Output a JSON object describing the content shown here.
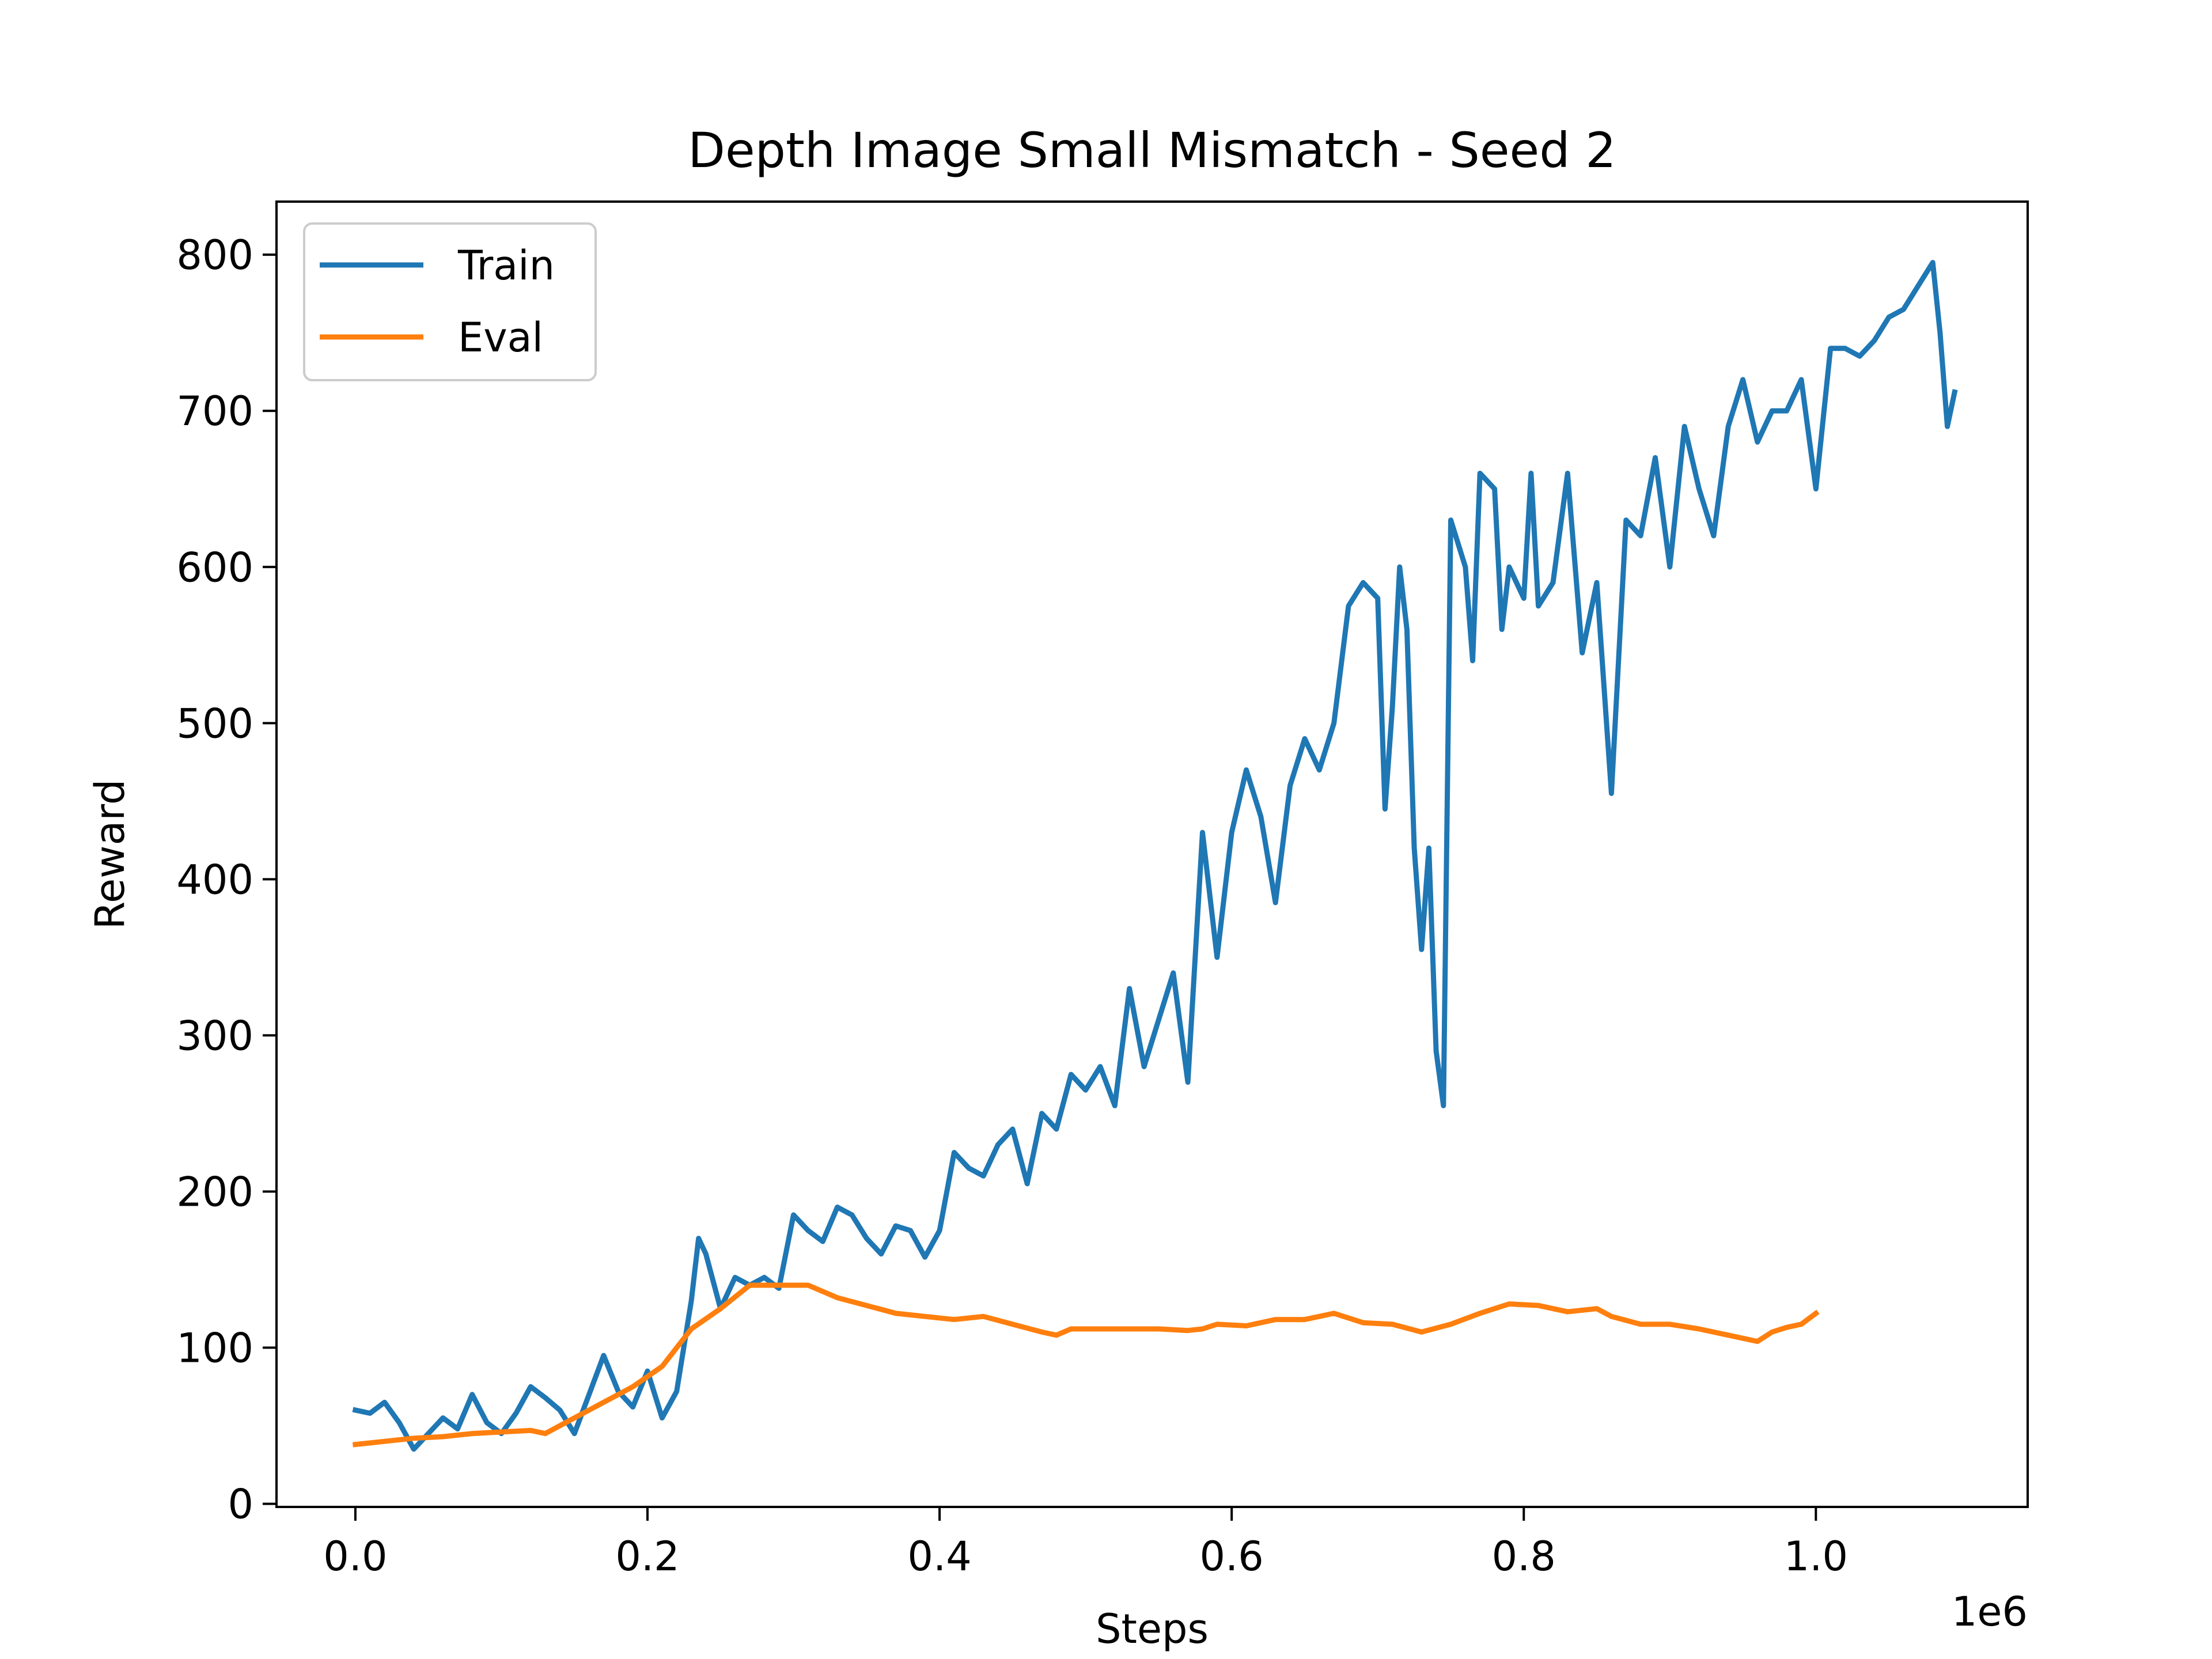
{
  "chart_data": {
    "type": "line",
    "title": "Depth Image Small Mismatch - Seed 2",
    "xlabel": "Steps",
    "ylabel": "Reward",
    "x_multiplier_label": "1e6",
    "xlim": [
      -0.054,
      1.145
    ],
    "ylim": [
      -2,
      834
    ],
    "xticks": [
      0.0,
      0.2,
      0.4,
      0.6,
      0.8,
      1.0
    ],
    "xtick_labels": [
      "0.0",
      "0.2",
      "0.4",
      "0.6",
      "0.8",
      "1.0"
    ],
    "yticks": [
      0,
      100,
      200,
      300,
      400,
      500,
      600,
      700,
      800
    ],
    "ytick_labels": [
      "0",
      "100",
      "200",
      "300",
      "400",
      "500",
      "600",
      "700",
      "800"
    ],
    "grid": false,
    "legend_position": "upper-left",
    "series": [
      {
        "name": "Train",
        "color": "#1f77b4",
        "points": [
          [
            0.0,
            60
          ],
          [
            0.01,
            58
          ],
          [
            0.02,
            65
          ],
          [
            0.03,
            52
          ],
          [
            0.04,
            35
          ],
          [
            0.05,
            45
          ],
          [
            0.06,
            55
          ],
          [
            0.07,
            48
          ],
          [
            0.08,
            70
          ],
          [
            0.09,
            52
          ],
          [
            0.1,
            45
          ],
          [
            0.11,
            58
          ],
          [
            0.12,
            75
          ],
          [
            0.13,
            68
          ],
          [
            0.14,
            60
          ],
          [
            0.15,
            45
          ],
          [
            0.16,
            70
          ],
          [
            0.17,
            95
          ],
          [
            0.18,
            72
          ],
          [
            0.19,
            62
          ],
          [
            0.2,
            85
          ],
          [
            0.21,
            55
          ],
          [
            0.22,
            72
          ],
          [
            0.23,
            130
          ],
          [
            0.235,
            170
          ],
          [
            0.24,
            160
          ],
          [
            0.25,
            125
          ],
          [
            0.26,
            145
          ],
          [
            0.27,
            140
          ],
          [
            0.28,
            145
          ],
          [
            0.29,
            138
          ],
          [
            0.3,
            185
          ],
          [
            0.31,
            175
          ],
          [
            0.32,
            168
          ],
          [
            0.33,
            190
          ],
          [
            0.34,
            185
          ],
          [
            0.35,
            170
          ],
          [
            0.36,
            160
          ],
          [
            0.37,
            178
          ],
          [
            0.38,
            175
          ],
          [
            0.39,
            158
          ],
          [
            0.4,
            175
          ],
          [
            0.41,
            225
          ],
          [
            0.42,
            215
          ],
          [
            0.43,
            210
          ],
          [
            0.44,
            230
          ],
          [
            0.45,
            240
          ],
          [
            0.46,
            205
          ],
          [
            0.47,
            250
          ],
          [
            0.48,
            240
          ],
          [
            0.49,
            275
          ],
          [
            0.5,
            265
          ],
          [
            0.51,
            280
          ],
          [
            0.52,
            255
          ],
          [
            0.53,
            330
          ],
          [
            0.54,
            280
          ],
          [
            0.55,
            310
          ],
          [
            0.56,
            340
          ],
          [
            0.57,
            270
          ],
          [
            0.58,
            430
          ],
          [
            0.59,
            350
          ],
          [
            0.6,
            430
          ],
          [
            0.61,
            470
          ],
          [
            0.62,
            440
          ],
          [
            0.63,
            385
          ],
          [
            0.64,
            460
          ],
          [
            0.65,
            490
          ],
          [
            0.66,
            470
          ],
          [
            0.67,
            500
          ],
          [
            0.68,
            575
          ],
          [
            0.69,
            590
          ],
          [
            0.7,
            580
          ],
          [
            0.705,
            445
          ],
          [
            0.71,
            510
          ],
          [
            0.715,
            600
          ],
          [
            0.72,
            560
          ],
          [
            0.725,
            420
          ],
          [
            0.73,
            355
          ],
          [
            0.735,
            420
          ],
          [
            0.74,
            290
          ],
          [
            0.745,
            255
          ],
          [
            0.75,
            630
          ],
          [
            0.76,
            600
          ],
          [
            0.765,
            540
          ],
          [
            0.77,
            660
          ],
          [
            0.78,
            650
          ],
          [
            0.785,
            560
          ],
          [
            0.79,
            600
          ],
          [
            0.8,
            580
          ],
          [
            0.805,
            660
          ],
          [
            0.81,
            575
          ],
          [
            0.82,
            590
          ],
          [
            0.83,
            660
          ],
          [
            0.84,
            545
          ],
          [
            0.85,
            590
          ],
          [
            0.86,
            455
          ],
          [
            0.87,
            630
          ],
          [
            0.88,
            620
          ],
          [
            0.89,
            670
          ],
          [
            0.9,
            600
          ],
          [
            0.91,
            690
          ],
          [
            0.92,
            650
          ],
          [
            0.93,
            620
          ],
          [
            0.94,
            690
          ],
          [
            0.95,
            720
          ],
          [
            0.96,
            680
          ],
          [
            0.97,
            700
          ],
          [
            0.98,
            700
          ],
          [
            0.99,
            720
          ],
          [
            1.0,
            650
          ],
          [
            1.01,
            740
          ],
          [
            1.02,
            740
          ],
          [
            1.03,
            735
          ],
          [
            1.04,
            745
          ],
          [
            1.05,
            760
          ],
          [
            1.06,
            765
          ],
          [
            1.07,
            780
          ],
          [
            1.08,
            795
          ],
          [
            1.085,
            750
          ],
          [
            1.09,
            690
          ],
          [
            1.095,
            712
          ]
        ]
      },
      {
        "name": "Eval",
        "color": "#ff7f0e",
        "points": [
          [
            0.0,
            38
          ],
          [
            0.02,
            40
          ],
          [
            0.04,
            42
          ],
          [
            0.06,
            43
          ],
          [
            0.08,
            45
          ],
          [
            0.1,
            46
          ],
          [
            0.12,
            47
          ],
          [
            0.13,
            45
          ],
          [
            0.15,
            55
          ],
          [
            0.17,
            65
          ],
          [
            0.19,
            75
          ],
          [
            0.21,
            88
          ],
          [
            0.23,
            112
          ],
          [
            0.25,
            125
          ],
          [
            0.27,
            140
          ],
          [
            0.29,
            140
          ],
          [
            0.31,
            140
          ],
          [
            0.33,
            132
          ],
          [
            0.35,
            127
          ],
          [
            0.37,
            122
          ],
          [
            0.39,
            120
          ],
          [
            0.41,
            118
          ],
          [
            0.43,
            120
          ],
          [
            0.45,
            115
          ],
          [
            0.47,
            110
          ],
          [
            0.48,
            108
          ],
          [
            0.49,
            112
          ],
          [
            0.51,
            112
          ],
          [
            0.53,
            112
          ],
          [
            0.55,
            112
          ],
          [
            0.57,
            111
          ],
          [
            0.58,
            112
          ],
          [
            0.59,
            115
          ],
          [
            0.61,
            114
          ],
          [
            0.63,
            118
          ],
          [
            0.65,
            118
          ],
          [
            0.67,
            122
          ],
          [
            0.69,
            116
          ],
          [
            0.71,
            115
          ],
          [
            0.73,
            110
          ],
          [
            0.75,
            115
          ],
          [
            0.77,
            122
          ],
          [
            0.79,
            128
          ],
          [
            0.81,
            127
          ],
          [
            0.83,
            123
          ],
          [
            0.85,
            125
          ],
          [
            0.86,
            120
          ],
          [
            0.88,
            115
          ],
          [
            0.9,
            115
          ],
          [
            0.92,
            112
          ],
          [
            0.94,
            108
          ],
          [
            0.96,
            104
          ],
          [
            0.97,
            110
          ],
          [
            0.98,
            113
          ],
          [
            0.99,
            115
          ],
          [
            1.0,
            122
          ]
        ]
      }
    ]
  }
}
